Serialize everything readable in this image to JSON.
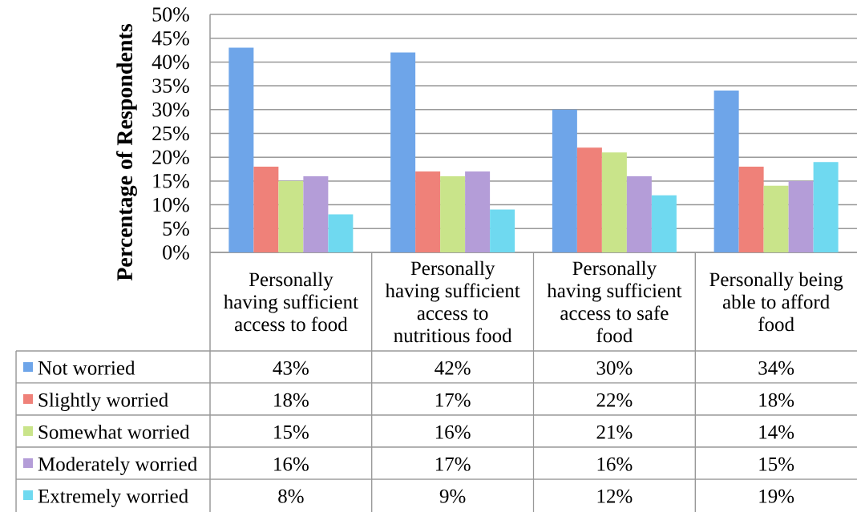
{
  "chart_data": {
    "type": "bar",
    "ylabel": "Percentage of Respondents",
    "categories": [
      "Personally having sufficient access to food",
      "Personally having sufficient access to nutritious food",
      "Personally having sufficient access to safe food",
      "Personally being able to afford food"
    ],
    "series": [
      {
        "name": "Not worried",
        "color": "#6ea5e9",
        "values": [
          43,
          42,
          30,
          34
        ],
        "value_labels": [
          "43%",
          "42%",
          "30%",
          "34%"
        ]
      },
      {
        "name": "Slightly worried",
        "color": "#ef8179",
        "values": [
          18,
          17,
          22,
          18
        ],
        "value_labels": [
          "18%",
          "17%",
          "22%",
          "18%"
        ]
      },
      {
        "name": "Somewhat worried",
        "color": "#c9e48a",
        "values": [
          15,
          16,
          21,
          14
        ],
        "value_labels": [
          "15%",
          "16%",
          "21%",
          "14%"
        ]
      },
      {
        "name": "Moderately worried",
        "color": "#b49dd8",
        "values": [
          16,
          17,
          16,
          15
        ],
        "value_labels": [
          "16%",
          "17%",
          "16%",
          "15%"
        ]
      },
      {
        "name": "Extremely worried",
        "color": "#6fd9f0",
        "values": [
          8,
          9,
          12,
          19
        ],
        "value_labels": [
          "8%",
          "9%",
          "12%",
          "19%"
        ]
      }
    ],
    "ylim": [
      0,
      50
    ],
    "yticks": [
      {
        "value": 0,
        "label": "0%"
      },
      {
        "value": 5,
        "label": "5%"
      },
      {
        "value": 10,
        "label": "10%"
      },
      {
        "value": 15,
        "label": "15%"
      },
      {
        "value": 20,
        "label": "20%"
      },
      {
        "value": 25,
        "label": "25%"
      },
      {
        "value": 30,
        "label": "30%"
      },
      {
        "value": 35,
        "label": "35%"
      },
      {
        "value": 40,
        "label": "40%"
      },
      {
        "value": 45,
        "label": "45%"
      },
      {
        "value": 50,
        "label": "50%"
      }
    ],
    "grid": "y",
    "legend": "bottom left"
  }
}
